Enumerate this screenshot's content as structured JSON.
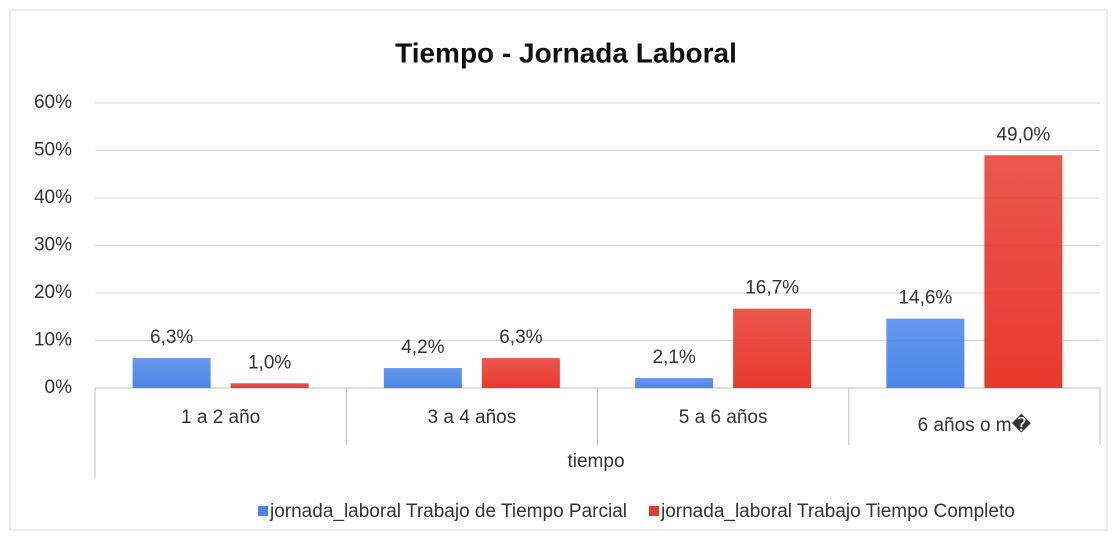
{
  "chart_data": {
    "type": "bar",
    "title": "Tiempo - Jornada Laboral",
    "x_label": "tiempo",
    "categories": [
      "1 a 2 año",
      "3 a 4 años",
      "5 a 6 años",
      "6 años o m�"
    ],
    "series": [
      {
        "name": "jornada_laboral Trabajo de Tiempo Parcial",
        "color": "#4a86e8",
        "values": [
          6.3,
          4.2,
          2.1,
          14.6
        ],
        "value_labels": [
          "6,3%",
          "4,2%",
          "2,1%",
          "14,6%"
        ]
      },
      {
        "name": "jornada_laboral Trabajo Tiempo Completo",
        "color": "#e8392e",
        "values": [
          1.0,
          6.3,
          16.7,
          49.0
        ],
        "value_labels": [
          "1,0%",
          "6,3%",
          "16,7%",
          "49,0%"
        ]
      }
    ],
    "ylim": [
      0,
      60
    ],
    "yticks": [
      {
        "value": 0,
        "label": "0%"
      },
      {
        "value": 10,
        "label": "10%"
      },
      {
        "value": 20,
        "label": "20%"
      },
      {
        "value": 30,
        "label": "30%"
      },
      {
        "value": 40,
        "label": "40%"
      },
      {
        "value": 50,
        "label": "50%"
      },
      {
        "value": 60,
        "label": "60%"
      }
    ],
    "grid": true,
    "legend": "bottom"
  }
}
